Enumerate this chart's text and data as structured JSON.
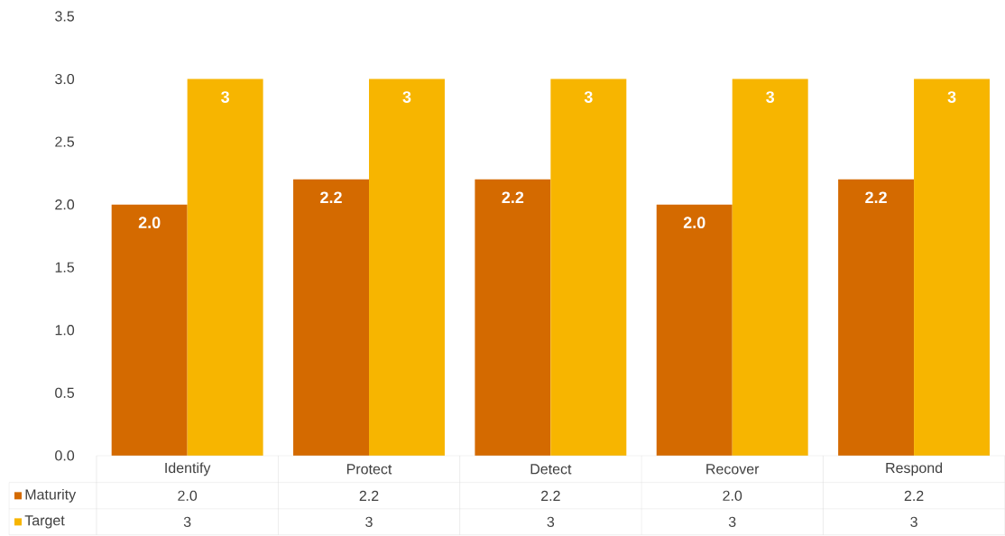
{
  "chart_data": {
    "type": "bar",
    "categories": [
      "Identify",
      "Protect",
      "Detect",
      "Recover",
      "Respond"
    ],
    "series": [
      {
        "name": "Maturity",
        "color": "#d46a00",
        "values": [
          2.0,
          2.2,
          2.2,
          2.0,
          2.2
        ],
        "value_labels": [
          "2.0",
          "2.2",
          "2.2",
          "2.0",
          "2.2"
        ]
      },
      {
        "name": "Target",
        "color": "#f7b500",
        "values": [
          3,
          3,
          3,
          3,
          3
        ],
        "value_labels": [
          "3",
          "3",
          "3",
          "3",
          "3"
        ]
      }
    ],
    "ylim": [
      0,
      3.5
    ],
    "yticks": [
      {
        "value": 0,
        "label": "0.0"
      },
      {
        "value": 0.5,
        "label": "0.5"
      },
      {
        "value": 1,
        "label": "1.0"
      },
      {
        "value": 1.5,
        "label": "1.5"
      },
      {
        "value": 2,
        "label": "2.0"
      },
      {
        "value": 2.5,
        "label": "2.5"
      },
      {
        "value": 3,
        "label": "3.0"
      },
      {
        "value": 3.5,
        "label": "3.5"
      }
    ],
    "grid": false,
    "legend": "bottom"
  }
}
